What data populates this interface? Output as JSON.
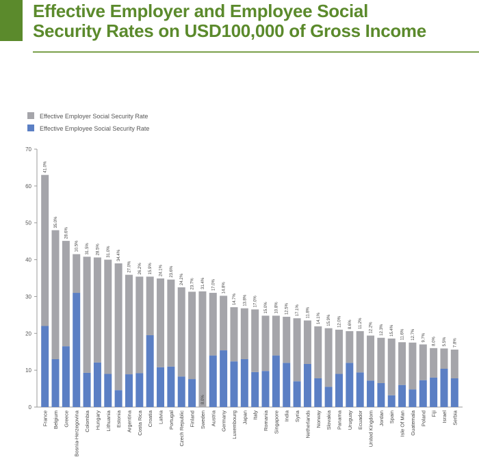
{
  "header": {
    "title_line1": "Effective Employer and Employee Social",
    "title_line2": "Security Rates on USD100,000 of Gross Income"
  },
  "colors": {
    "brand_green": "#5b8a2c",
    "employer": "#a5a5aa",
    "employee": "#5b7fc4"
  },
  "chart_data": {
    "type": "bar",
    "stacked": true,
    "title": "Effective Employer and Employee Social Security Rates on USD100,000 of Gross Income",
    "ylim": [
      0,
      70
    ],
    "yticks": [
      0,
      10,
      20,
      30,
      40,
      50,
      60,
      70
    ],
    "grid": false,
    "legend_position": "top-left",
    "categories": [
      "France",
      "Belgium",
      "Greece",
      "Bosnia-Herzegovina",
      "Colombia",
      "Hungary",
      "Lithuania",
      "Estonia",
      "Argentina",
      "Costa Rica",
      "Croatia",
      "Latvia",
      "Portugal",
      "Czech Republic",
      "Finland",
      "Sweden",
      "Austria",
      "Germany",
      "Luxembourg",
      "Japan",
      "Italy",
      "Romania",
      "Singapore",
      "India",
      "Syria",
      "Netherlands",
      "Norway",
      "Slovakia",
      "Panama",
      "Uruguay",
      "Ecuador",
      "United Kingdom",
      "Jordan",
      "Spain",
      "Isle Of Man",
      "Guatemala",
      "Poland",
      "Fiji",
      "Israel",
      "Serbia"
    ],
    "series": [
      {
        "name": "Effective Employee Social Security Rate",
        "color": "#5b7fc4",
        "values": [
          22.0,
          13.0,
          16.5,
          31.0,
          9.3,
          12.1,
          9.0,
          4.6,
          8.9,
          9.2,
          19.5,
          10.8,
          11.0,
          8.3,
          7.6,
          0,
          14.0,
          15.4,
          12.4,
          13.0,
          9.5,
          9.8,
          14.0,
          12.0,
          7.0,
          11.7,
          7.8,
          5.5,
          9.0,
          12.0,
          9.4,
          7.2,
          6.5,
          3.2,
          6.0,
          4.8,
          7.3,
          8.0,
          10.4,
          7.8
        ]
      },
      {
        "name": "Effective Employer Social Security Rate",
        "color": "#a5a5aa",
        "values": [
          41.0,
          35.0,
          28.6,
          10.5,
          31.5,
          28.5,
          31.0,
          34.4,
          27.0,
          26.2,
          15.9,
          24.1,
          23.6,
          24.2,
          23.7,
          31.4,
          17.0,
          14.8,
          14.7,
          13.8,
          17.0,
          15.0,
          10.8,
          12.5,
          17.1,
          11.8,
          14.1,
          15.9,
          12.0,
          8.6,
          11.2,
          12.2,
          12.3,
          15.4,
          11.6,
          12.7,
          9.7,
          8.0,
          5.5,
          7.8
        ],
        "labels": [
          "41.0%",
          "35.0%",
          "28.6%",
          "10.5%",
          "31.5%",
          "28.5%",
          "31.0%",
          "34.4%",
          "27.0%",
          "26.2%",
          "15.9%",
          "24.1%",
          "23.6%",
          "24.2%",
          "23.7%",
          "31.4%",
          "17.0%",
          "14.8%",
          "14.7%",
          "13.8%",
          "17.0%",
          "15.0%",
          "10.8%",
          "12.5%",
          "17.1%",
          "11.8%",
          "14.1%",
          "15.9%",
          "12.0%",
          "8.6%",
          "11.2%",
          "12.2%",
          "12.3%",
          "15.4%",
          "11.6%",
          "12.7%",
          "9.7%",
          "8.0%",
          "5.5%",
          "7.8%"
        ]
      }
    ],
    "annotations": [
      {
        "category": "Sweden",
        "text": "8.0%"
      }
    ]
  }
}
